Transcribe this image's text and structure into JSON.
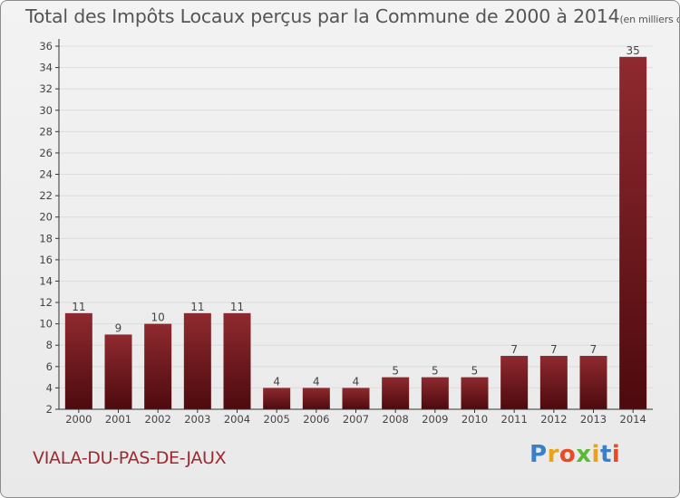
{
  "title": "Total des Impôts Locaux perçus par la Commune de 2000 à 2014",
  "title_unit": "(en milliers d'€)",
  "commune": "VIALA-DU-PAS-DE-JAUX",
  "logo": {
    "letters": [
      "P",
      "r",
      "o",
      "x",
      "i",
      "t",
      "i"
    ],
    "colors": [
      "#3a7fc7",
      "#e8a317",
      "#e84b25",
      "#5cb837",
      "#e8a317",
      "#3a7fc7",
      "#e84b25"
    ]
  },
  "colors": {
    "bar_top": "#8f2a2f",
    "bar_bottom": "#4d0a0e",
    "axis": "#333333",
    "label": "#444444"
  },
  "chart_data": {
    "type": "bar",
    "title": "Total des Impôts Locaux perçus par la Commune de 2000 à 2014",
    "categories": [
      "2000",
      "2001",
      "2002",
      "2003",
      "2004",
      "2005",
      "2006",
      "2007",
      "2008",
      "2009",
      "2010",
      "2011",
      "2012",
      "2013",
      "2014"
    ],
    "values": [
      11,
      9,
      10,
      11,
      11,
      4,
      4,
      4,
      5,
      5,
      5,
      7,
      7,
      7,
      35
    ],
    "ylim": [
      2,
      36
    ],
    "yticks": [
      2,
      4,
      6,
      8,
      10,
      12,
      14,
      16,
      18,
      20,
      22,
      24,
      26,
      28,
      30,
      32,
      34,
      36
    ],
    "xlabel": "",
    "ylabel": ""
  }
}
